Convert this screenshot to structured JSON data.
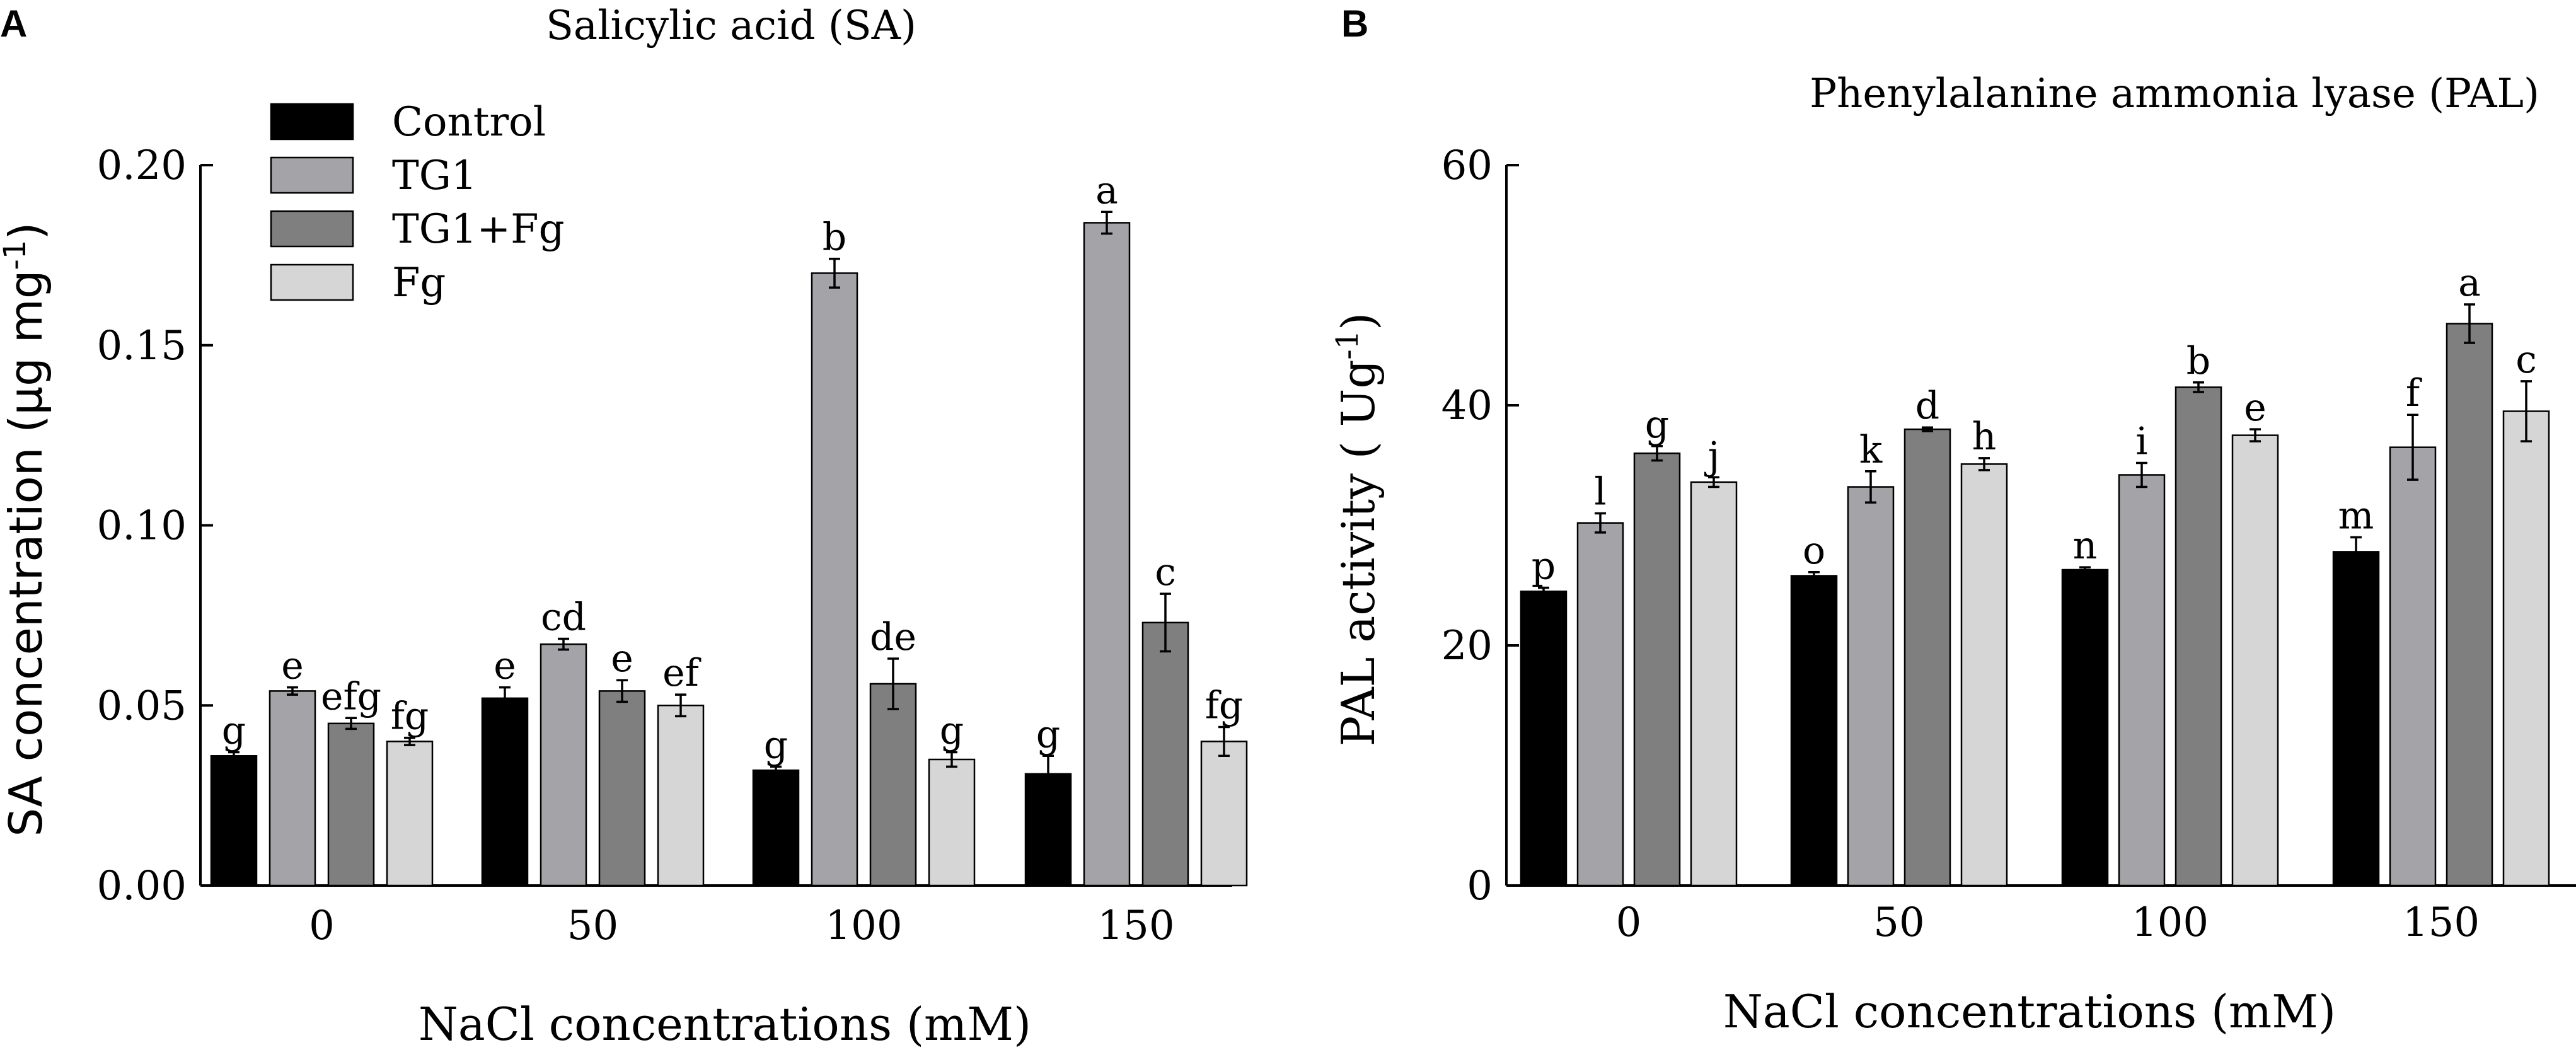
{
  "chart_data": [
    {
      "type": "bar",
      "panel": "A",
      "title": "Salicylic acid (SA)",
      "xlabel": "NaCl concentrations (mM)",
      "ylabel": "SA concentration (μg mg",
      "ylabel_sup": "-1",
      "ylabel_close": ")",
      "categories": [
        "0",
        "50",
        "100",
        "150"
      ],
      "ylim": [
        0,
        0.2
      ],
      "yticks": [
        "0.00",
        "0.05",
        "0.10",
        "0.15",
        "0.20"
      ],
      "series": [
        {
          "name": "Control",
          "color": "#000000",
          "values": [
            0.036,
            0.052,
            0.032,
            0.031
          ],
          "errors": [
            0.001,
            0.003,
            0.001,
            0.005
          ],
          "labels": [
            "g",
            "e",
            "g",
            "g"
          ]
        },
        {
          "name": "TG1",
          "color": "#a3a3a8",
          "values": [
            0.054,
            0.067,
            0.17,
            0.184
          ],
          "errors": [
            0.001,
            0.0015,
            0.004,
            0.003
          ],
          "labels": [
            "e",
            "cd",
            "b",
            "a"
          ]
        },
        {
          "name": "TG1+Fg",
          "color": "#7f7f7f",
          "values": [
            0.045,
            0.054,
            0.056,
            0.073
          ],
          "errors": [
            0.0015,
            0.003,
            0.007,
            0.008
          ],
          "labels": [
            "efg",
            "e",
            "de",
            "c"
          ]
        },
        {
          "name": "Fg",
          "color": "#d6d6d6",
          "values": [
            0.04,
            0.05,
            0.035,
            0.04
          ],
          "errors": [
            0.001,
            0.003,
            0.002,
            0.004
          ],
          "labels": [
            "fg",
            "ef",
            "g",
            "fg"
          ]
        }
      ]
    },
    {
      "type": "bar",
      "panel": "B",
      "title": "Phenylalanine ammonia lyase (PAL)",
      "xlabel": "NaCl concentrations (mM)",
      "ylabel": "PAL activity ( Ug",
      "ylabel_sup": "-1",
      "ylabel_close": ")",
      "categories": [
        "0",
        "50",
        "100",
        "150"
      ],
      "ylim": [
        0,
        60
      ],
      "yticks": [
        "0",
        "20",
        "40",
        "60"
      ],
      "series": [
        {
          "name": "Control",
          "color": "#000000",
          "values": [
            24.5,
            25.8,
            26.3,
            27.8
          ],
          "errors": [
            0.3,
            0.3,
            0.2,
            1.2
          ],
          "labels": [
            "p",
            "o",
            "n",
            "m"
          ]
        },
        {
          "name": "TG1",
          "color": "#a3a3a8",
          "values": [
            30.2,
            33.2,
            34.2,
            36.5
          ],
          "errors": [
            0.8,
            1.3,
            1.0,
            2.7
          ],
          "labels": [
            "l",
            "k",
            "i",
            "f"
          ]
        },
        {
          "name": "TG1+Fg",
          "color": "#7f7f7f",
          "values": [
            36.0,
            38.0,
            41.5,
            46.8
          ],
          "errors": [
            0.6,
            0.15,
            0.4,
            1.6
          ],
          "labels": [
            "g",
            "d",
            "b",
            "a"
          ]
        },
        {
          "name": "Fg",
          "color": "#d6d6d6",
          "values": [
            33.6,
            35.1,
            37.5,
            39.5
          ],
          "errors": [
            0.4,
            0.5,
            0.5,
            2.5
          ],
          "labels": [
            "j",
            "h",
            "e",
            "c"
          ]
        }
      ]
    }
  ]
}
